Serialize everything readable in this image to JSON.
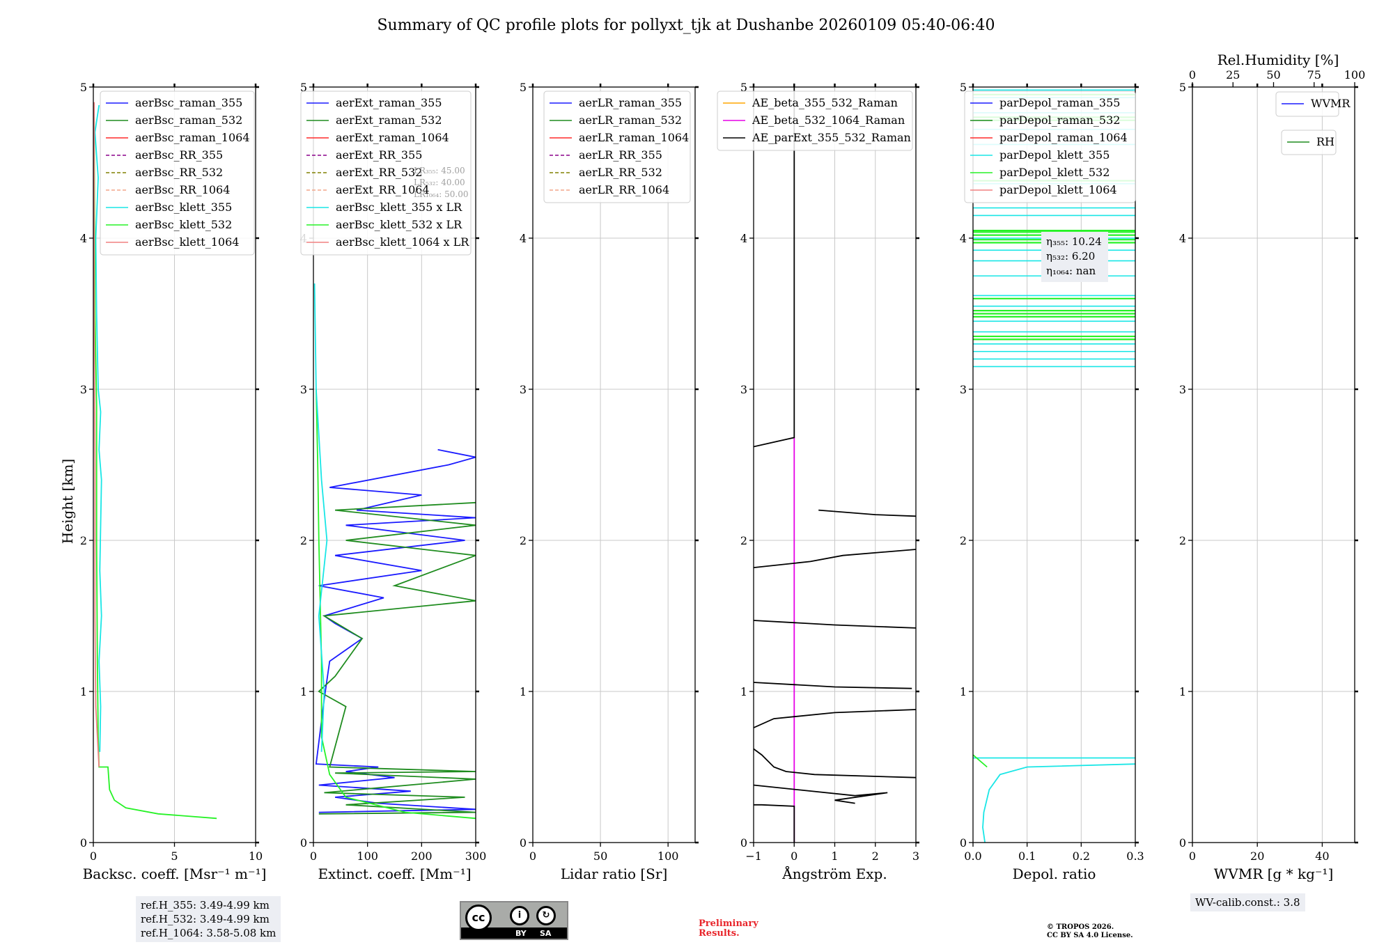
{
  "title": "Summary of QC profile plots for pollyxt_tjk at Dushanbe 20260109 05:40-06:40",
  "ylabel": "Height [km]",
  "y_ticks": [
    "0",
    "1",
    "2",
    "3",
    "4",
    "5"
  ],
  "panels": [
    {
      "name": "backscatter",
      "xlabel": "Backsc. coeff. [Msr⁻¹ m⁻¹]",
      "xlim": [
        0,
        10
      ],
      "xticks": [
        {
          "v": 0,
          "t": "0"
        },
        {
          "v": 5,
          "t": "5"
        },
        {
          "v": 10,
          "t": "10"
        }
      ],
      "legend": [
        {
          "label": "aerBsc_raman_355",
          "color": "#1a1aff",
          "dash": false
        },
        {
          "label": "aerBsc_raman_532",
          "color": "#1f8c1f",
          "dash": false
        },
        {
          "label": "aerBsc_raman_1064",
          "color": "#ff2a2a",
          "dash": false
        },
        {
          "label": "aerBsc_RR_355",
          "color": "#8a008a",
          "dash": true
        },
        {
          "label": "aerBsc_RR_532",
          "color": "#808000",
          "dash": true
        },
        {
          "label": "aerBsc_RR_1064",
          "color": "#f4a58a",
          "dash": true
        },
        {
          "label": "aerBsc_klett_355",
          "color": "#19e6e6",
          "dash": false
        },
        {
          "label": "aerBsc_klett_532",
          "color": "#26f226",
          "dash": false
        },
        {
          "label": "aerBsc_klett_1064",
          "color": "#f08080",
          "dash": false
        }
      ]
    },
    {
      "name": "extinction",
      "xlabel": "Extinct. coeff. [Mm⁻¹]",
      "xlim": [
        0,
        300
      ],
      "xticks": [
        {
          "v": 0,
          "t": "0"
        },
        {
          "v": 100,
          "t": "100"
        },
        {
          "v": 200,
          "t": "200"
        },
        {
          "v": 300,
          "t": "300"
        }
      ],
      "legend": [
        {
          "label": "aerExt_raman_355",
          "color": "#1a1aff",
          "dash": false
        },
        {
          "label": "aerExt_raman_532",
          "color": "#1f8c1f",
          "dash": false
        },
        {
          "label": "aerExt_raman_1064",
          "color": "#ff2a2a",
          "dash": false
        },
        {
          "label": "aerExt_RR_355",
          "color": "#8a008a",
          "dash": true
        },
        {
          "label": "aerExt_RR_532",
          "color": "#808000",
          "dash": true
        },
        {
          "label": "aerExt_RR_1064",
          "color": "#f4a58a",
          "dash": true
        },
        {
          "label": "aerBsc_klett_355 x LR",
          "color": "#19e6e6",
          "dash": false
        },
        {
          "label": "aerBsc_klett_532 x LR",
          "color": "#26f226",
          "dash": false
        },
        {
          "label": "aerBsc_klett_1064 x LR",
          "color": "#f08080",
          "dash": false
        }
      ],
      "lr_notes": [
        "LR₃₅₅: 45.00",
        "LR₅₃₂: 40.00",
        "LR₁₀₆₄: 50.00"
      ]
    },
    {
      "name": "lidar-ratio",
      "xlabel": "Lidar ratio [Sr]",
      "xlim": [
        0,
        120
      ],
      "xticks": [
        {
          "v": 0,
          "t": "0"
        },
        {
          "v": 50,
          "t": "50"
        },
        {
          "v": 100,
          "t": "100"
        }
      ],
      "legend": [
        {
          "label": "aerLR_raman_355",
          "color": "#1a1aff",
          "dash": false
        },
        {
          "label": "aerLR_raman_532",
          "color": "#1f8c1f",
          "dash": false
        },
        {
          "label": "aerLR_raman_1064",
          "color": "#ff2a2a",
          "dash": false
        },
        {
          "label": "aerLR_RR_355",
          "color": "#8a008a",
          "dash": true
        },
        {
          "label": "aerLR_RR_532",
          "color": "#808000",
          "dash": true
        },
        {
          "label": "aerLR_RR_1064",
          "color": "#f4a58a",
          "dash": true
        }
      ]
    },
    {
      "name": "angstrom",
      "xlabel": "Ångström Exp.",
      "xlim": [
        -1,
        3
      ],
      "xticks": [
        {
          "v": -1,
          "t": "−1"
        },
        {
          "v": 0,
          "t": "0"
        },
        {
          "v": 1,
          "t": "1"
        },
        {
          "v": 2,
          "t": "2"
        },
        {
          "v": 3,
          "t": "3"
        }
      ],
      "legend": [
        {
          "label": "AE_beta_355_532_Raman",
          "color": "#ffa500",
          "dash": false
        },
        {
          "label": "AE_beta_532_1064_Raman",
          "color": "#e600e6",
          "dash": false
        },
        {
          "label": "AE_parExt_355_532_Raman",
          "color": "#000000",
          "dash": false
        }
      ]
    },
    {
      "name": "depolarization",
      "xlabel": "Depol. ratio",
      "xlim": [
        0,
        0.3
      ],
      "xticks": [
        {
          "v": 0,
          "t": "0.0"
        },
        {
          "v": 0.1,
          "t": "0.1"
        },
        {
          "v": 0.2,
          "t": "0.2"
        },
        {
          "v": 0.3,
          "t": "0.3"
        }
      ],
      "legend": [
        {
          "label": "parDepol_raman_355",
          "color": "#1a1aff",
          "dash": false
        },
        {
          "label": "parDepol_raman_532",
          "color": "#1f8c1f",
          "dash": false
        },
        {
          "label": "parDepol_raman_1064",
          "color": "#ff2a2a",
          "dash": false
        },
        {
          "label": "parDepol_klett_355",
          "color": "#19e6e6",
          "dash": false
        },
        {
          "label": "parDepol_klett_532",
          "color": "#26f226",
          "dash": false
        },
        {
          "label": "parDepol_klett_1064",
          "color": "#f08080",
          "dash": false
        }
      ],
      "eta": [
        "η₃₅₅: 10.24",
        "η₅₃₂: 6.20",
        "η₁₀₆₄: nan"
      ]
    },
    {
      "name": "wvmr",
      "xlabel": "WVMR [g * kg⁻¹]",
      "xlim": [
        0,
        50
      ],
      "xticks": [
        {
          "v": 0,
          "t": "0"
        },
        {
          "v": 20,
          "t": "20"
        },
        {
          "v": 40,
          "t": "40"
        }
      ],
      "top_label": "Rel.Humidity [%]",
      "top_xlim": [
        0,
        100
      ],
      "top_ticks": [
        {
          "v": 0,
          "t": "0"
        },
        {
          "v": 25,
          "t": "25"
        },
        {
          "v": 50,
          "t": "50"
        },
        {
          "v": 75,
          "t": "75"
        },
        {
          "v": 100,
          "t": "100"
        }
      ],
      "legend": [
        {
          "label": "WVMR",
          "color": "#1a1aff",
          "dash": false
        },
        {
          "label": "RH",
          "color": "#1f8c1f",
          "dash": false
        }
      ]
    }
  ],
  "ref_heights": [
    "ref.H_355: 3.49-4.99 km",
    "ref.H_532: 3.49-4.99 km",
    "ref.H_1064: 3.58-5.08 km"
  ],
  "wv_calib": "WV-calib.const.: 3.8",
  "license_badge": [
    "cc",
    "BY",
    "SA"
  ],
  "preliminary": [
    "Preliminary",
    "Results."
  ],
  "copyright": [
    "© TROPOS 2026.",
    "CC BY SA 4.0 License."
  ],
  "chart_data": {
    "type": "line",
    "title": "Summary of QC profile plots for pollyxt_tjk at Dushanbe 20260109 05:40-06:40",
    "ylabel": "Height [km]",
    "ylim": [
      0,
      5
    ],
    "series": [
      {
        "panel": 0,
        "name": "aerBsc_klett_532",
        "color": "#26f226",
        "points": [
          [
            7.6,
            0.16
          ],
          [
            4,
            0.19
          ],
          [
            2,
            0.23
          ],
          [
            1.3,
            0.28
          ],
          [
            1.0,
            0.35
          ],
          [
            0.9,
            0.5
          ],
          [
            0.35,
            0.5
          ],
          [
            0.3,
            0.7
          ],
          [
            0.25,
            1.2
          ],
          [
            0.2,
            2.0
          ],
          [
            0.2,
            2.9
          ],
          [
            0.1,
            3.5
          ],
          [
            0.05,
            4.8
          ]
        ]
      },
      {
        "panel": 0,
        "name": "aerBsc_klett_355",
        "color": "#19e6e6",
        "points": [
          [
            0.4,
            0.6
          ],
          [
            0.45,
            0.9
          ],
          [
            0.35,
            1.2
          ],
          [
            0.5,
            1.5
          ],
          [
            0.4,
            1.8
          ],
          [
            0.45,
            2.1
          ],
          [
            0.5,
            2.4
          ],
          [
            0.35,
            2.6
          ],
          [
            0.45,
            2.85
          ],
          [
            0.3,
            3.0
          ],
          [
            0.2,
            3.5
          ],
          [
            0.15,
            4.0
          ],
          [
            0.3,
            4.4
          ],
          [
            0.1,
            4.7
          ],
          [
            0.35,
            4.88
          ]
        ]
      },
      {
        "panel": 0,
        "name": "aerBsc_klett_1064",
        "color": "#f08080",
        "points": [
          [
            0.35,
            0.5
          ],
          [
            0.15,
            0.9
          ],
          [
            0.1,
            1.5
          ],
          [
            0.1,
            2.5
          ],
          [
            0.05,
            3.5
          ],
          [
            0.05,
            4.9
          ]
        ]
      },
      {
        "panel": 1,
        "name": "aerExt_raman_355",
        "color": "#1a1aff",
        "points": [
          [
            10,
            0.2
          ],
          [
            300,
            0.22
          ],
          [
            120,
            0.26
          ],
          [
            40,
            0.3
          ],
          [
            180,
            0.34
          ],
          [
            10,
            0.38
          ],
          [
            150,
            0.43
          ],
          [
            60,
            0.47
          ],
          [
            120,
            0.5
          ],
          [
            5,
            0.52
          ],
          [
            20,
            0.95
          ],
          [
            30,
            1.2
          ],
          [
            90,
            1.35
          ],
          [
            40,
            1.45
          ],
          [
            20,
            1.5
          ],
          [
            130,
            1.62
          ],
          [
            10,
            1.7
          ],
          [
            200,
            1.8
          ],
          [
            40,
            1.9
          ],
          [
            280,
            2.0
          ],
          [
            60,
            2.1
          ],
          [
            300,
            2.15
          ],
          [
            80,
            2.2
          ],
          [
            200,
            2.3
          ],
          [
            30,
            2.35
          ],
          [
            250,
            2.5
          ],
          [
            300,
            2.55
          ],
          [
            230,
            2.6
          ]
        ]
      },
      {
        "panel": 1,
        "name": "aerExt_raman_532",
        "color": "#1f8c1f",
        "points": [
          [
            10,
            0.19
          ],
          [
            300,
            0.2
          ],
          [
            60,
            0.25
          ],
          [
            280,
            0.3
          ],
          [
            20,
            0.33
          ],
          [
            300,
            0.42
          ],
          [
            40,
            0.46
          ],
          [
            300,
            0.47
          ],
          [
            30,
            0.5
          ],
          [
            60,
            0.9
          ],
          [
            10,
            1.0
          ],
          [
            40,
            1.1
          ],
          [
            90,
            1.35
          ],
          [
            20,
            1.5
          ],
          [
            300,
            1.6
          ],
          [
            150,
            1.7
          ],
          [
            300,
            1.9
          ],
          [
            60,
            2.0
          ],
          [
            300,
            2.1
          ],
          [
            40,
            2.2
          ],
          [
            300,
            2.25
          ]
        ]
      },
      {
        "panel": 1,
        "name": "aerBsc_klett_532 x LR",
        "color": "#26f226",
        "points": [
          [
            300,
            0.16
          ],
          [
            170,
            0.2
          ],
          [
            60,
            0.3
          ],
          [
            30,
            0.45
          ],
          [
            15,
            0.7
          ],
          [
            15,
            1.2
          ],
          [
            10,
            2.0
          ],
          [
            8,
            2.5
          ],
          [
            5,
            3.0
          ]
        ]
      },
      {
        "panel": 1,
        "name": "aerBsc_klett_355 x LR",
        "color": "#19e6e6",
        "points": [
          [
            15,
            0.6
          ],
          [
            20,
            1.0
          ],
          [
            10,
            1.5
          ],
          [
            25,
            2.0
          ],
          [
            15,
            2.4
          ],
          [
            5,
            3.0
          ],
          [
            2,
            3.7
          ]
        ]
      },
      {
        "panel": 3,
        "name": "AE_beta_532_1064_Raman",
        "color": "#e600e6",
        "points": [
          [
            0,
            0.0
          ],
          [
            0,
            2.68
          ]
        ]
      },
      {
        "panel": 3,
        "name": "AE_parExt_355_532_Raman",
        "color": "#000000",
        "points": [
          [
            0,
            0.0
          ],
          [
            0,
            0.24
          ],
          [
            -0.8,
            0.25
          ],
          [
            -1,
            0.25
          ]
        ]
      },
      {
        "panel": 3,
        "name": "AE_parExt_355_532_Raman",
        "color": "#000000",
        "points": [
          [
            -1,
            0.38
          ],
          [
            1.5,
            0.31
          ],
          [
            2.3,
            0.33
          ],
          [
            1.0,
            0.28
          ],
          [
            1.5,
            0.26
          ]
        ]
      },
      {
        "panel": 3,
        "name": "AE_parExt_355_532_Raman",
        "color": "#000000",
        "points": [
          [
            -1,
            0.62
          ],
          [
            -0.8,
            0.58
          ],
          [
            -0.5,
            0.5
          ],
          [
            -0.2,
            0.47
          ],
          [
            0.5,
            0.45
          ],
          [
            3,
            0.43
          ]
        ]
      },
      {
        "panel": 3,
        "name": "AE_parExt_355_532_Raman",
        "color": "#000000",
        "points": [
          [
            -1,
            0.76
          ],
          [
            -0.5,
            0.82
          ],
          [
            1,
            0.86
          ],
          [
            3,
            0.88
          ]
        ]
      },
      {
        "panel": 3,
        "name": "AE_parExt_355_532_Raman",
        "color": "#000000",
        "points": [
          [
            -1,
            1.06
          ],
          [
            1,
            1.03
          ],
          [
            2.9,
            1.02
          ]
        ]
      },
      {
        "panel": 3,
        "name": "AE_parExt_355_532_Raman",
        "color": "#000000",
        "points": [
          [
            -1,
            1.47
          ],
          [
            1,
            1.44
          ],
          [
            3,
            1.42
          ]
        ]
      },
      {
        "panel": 3,
        "name": "AE_parExt_355_532_Raman",
        "color": "#000000",
        "points": [
          [
            -1,
            1.82
          ],
          [
            0.4,
            1.86
          ],
          [
            1.2,
            1.9
          ],
          [
            3,
            1.94
          ]
        ]
      },
      {
        "panel": 3,
        "name": "AE_parExt_355_532_Raman",
        "color": "#000000",
        "points": [
          [
            0.6,
            2.2
          ],
          [
            2,
            2.17
          ],
          [
            3,
            2.16
          ]
        ]
      },
      {
        "panel": 3,
        "name": "AE_parExt_355_532_Raman",
        "color": "#000000",
        "points": [
          [
            -1,
            2.62
          ],
          [
            0,
            2.68
          ],
          [
            0,
            5.0
          ]
        ]
      },
      {
        "panel": 4,
        "name": "parDepol_klett_355",
        "color": "#19e6e6",
        "points": [
          [
            0.022,
            0.0
          ],
          [
            0.018,
            0.1
          ],
          [
            0.02,
            0.2
          ],
          [
            0.03,
            0.35
          ],
          [
            0.05,
            0.45
          ],
          [
            0.1,
            0.5
          ],
          [
            0.3,
            0.52
          ]
        ]
      },
      {
        "panel": 4,
        "name": "parDepol_klett_355",
        "color": "#19e6e6",
        "points": [
          [
            0.0,
            0.56
          ],
          [
            0.3,
            0.56
          ]
        ]
      },
      {
        "panel": 4,
        "name": "parDepol_klett_532",
        "color": "#26f226",
        "points": [
          [
            0.0,
            0.58
          ],
          [
            0.026,
            0.5
          ]
        ]
      }
    ],
    "depol_klett_355_levels_km": [
      3.15,
      3.2,
      3.25,
      3.3,
      3.38,
      3.45,
      3.55,
      3.62,
      3.75,
      3.85,
      3.92,
      4.0,
      4.15,
      4.2,
      4.36,
      4.62,
      4.72,
      4.83,
      4.93,
      4.98
    ],
    "depol_klett_532_levels_km": [
      3.33,
      3.35,
      3.48,
      3.5,
      3.52,
      3.6,
      3.97,
      3.99,
      4.02,
      4.04,
      4.05,
      4.38,
      4.78,
      4.8,
      4.95
    ]
  }
}
